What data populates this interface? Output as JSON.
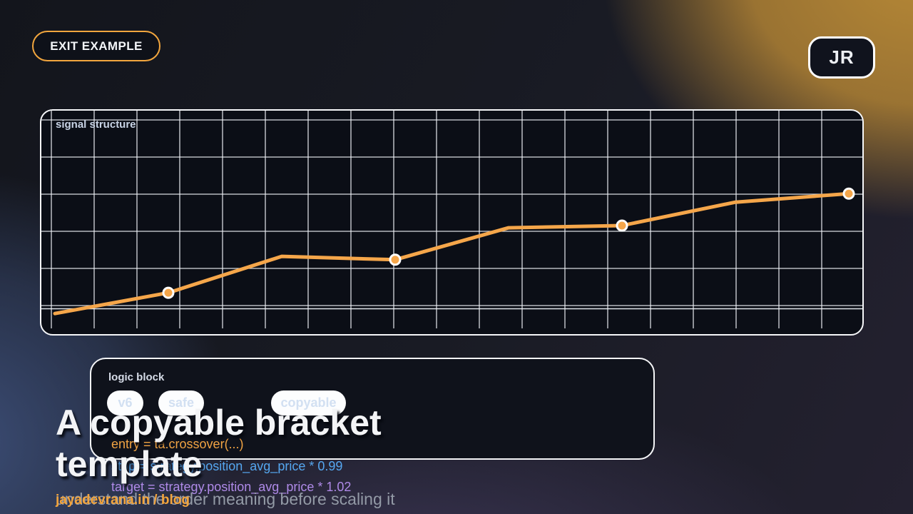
{
  "header": {
    "exit_button_label": "EXIT EXAMPLE",
    "avatar_initials": "JR"
  },
  "chart_data": {
    "type": "line",
    "title": "signal structure",
    "x": [
      0,
      1,
      2,
      3,
      4,
      5,
      6,
      7
    ],
    "values": [
      0.4,
      0.96,
      1.94,
      1.85,
      2.71,
      2.77,
      3.4,
      3.63
    ],
    "marker_indices": [
      1,
      3,
      5,
      7
    ],
    "xlabel": "",
    "ylabel": "",
    "ylim": [
      0,
      5.9
    ],
    "grid": true,
    "legend": false,
    "line_color": "#f5a64a",
    "marker_color": "#f5a64a",
    "marker_ring_color": "#ffffff",
    "grid_color": "#eef1f6",
    "baseline_double_line": true
  },
  "logic_block": {
    "title": "logic block",
    "tags": [
      "v6",
      "safe",
      "copyable"
    ],
    "code_lines": [
      {
        "text": "entry = ta.crossover(...)",
        "color": "#f0a343"
      },
      {
        "text": "stop = strategy.position_avg_price * 0.99",
        "color": "#55a7f0"
      },
      {
        "text": "target = strategy.position_avg_price * 1.02",
        "color": "#af8ae8"
      }
    ]
  },
  "hero": {
    "heading": "A copyable bracket template",
    "subtext": "understand the order meaning before scaling it",
    "link_text": "jayadevrana.in / blog"
  },
  "colors": {
    "accent_orange": "#f2a63e",
    "background_gold": "#b08634",
    "background_blue": "#3e507a",
    "panel_dark": "#0b0e16"
  }
}
